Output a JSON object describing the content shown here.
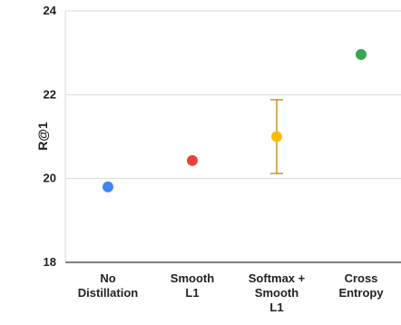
{
  "chart_data": {
    "type": "scatter",
    "title": "",
    "xlabel": "",
    "ylabel": "R@1",
    "ylim": [
      18,
      24
    ],
    "yticks": [
      18,
      20,
      22,
      24
    ],
    "grid": "horizontal",
    "categories": [
      [
        "No",
        "Distillation"
      ],
      [
        "Smooth",
        "L1"
      ],
      [
        "Softmax +",
        "Smooth",
        "L1"
      ],
      [
        "Cross",
        "Entropy"
      ]
    ],
    "points": [
      {
        "y": 19.8,
        "color": "#4285F4"
      },
      {
        "y": 20.43,
        "color": "#EA4335"
      },
      {
        "y": 21.0,
        "color": "#FBBC04",
        "err_low": 20.12,
        "err_high": 21.88,
        "err_color": "#B8860B"
      },
      {
        "y": 22.96,
        "color": "#34A853"
      }
    ]
  }
}
